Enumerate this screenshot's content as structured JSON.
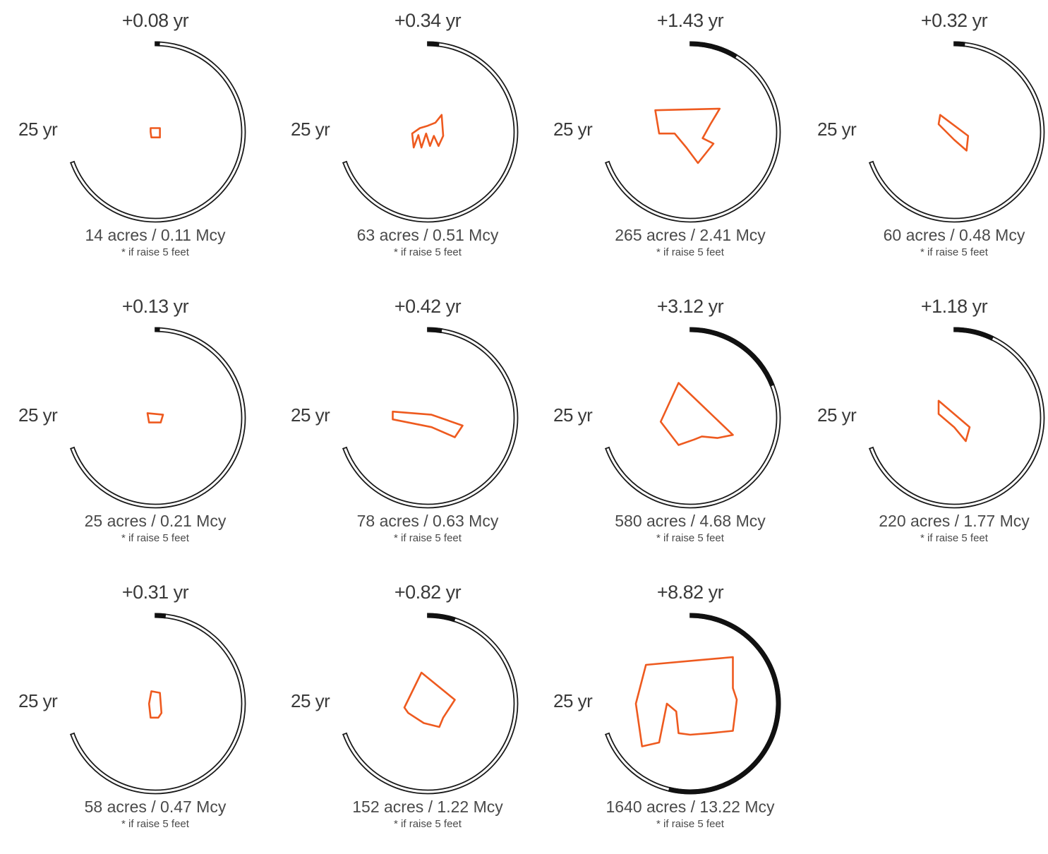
{
  "chart_data": {
    "type": "radial-gauge-small-multiples",
    "base_label": "25 yr",
    "note": "* if raise 5 feet",
    "gauge_max_years": 25,
    "colors": {
      "ring": "#1a1a1a",
      "gain": "#111111",
      "shape": "#ee5a1f",
      "text": "#3a3a3a"
    },
    "panels": [
      {
        "gain_label": "+0.08 yr",
        "gain_years": 0.08,
        "area_label": "14 acres / 0.11 Mcy",
        "acres": 14,
        "mcy": 0.11,
        "shape": [
          [
            -0.06,
            -0.05
          ],
          [
            0.06,
            -0.05
          ],
          [
            0.06,
            0.07
          ],
          [
            -0.05,
            0.07
          ],
          [
            -0.06,
            0.0
          ]
        ]
      },
      {
        "gain_label": "+0.34 yr",
        "gain_years": 0.34,
        "area_label": "63 acres / 0.51 Mcy",
        "acres": 63,
        "mcy": 0.51,
        "shape": [
          [
            -0.2,
            0.02
          ],
          [
            -0.1,
            -0.05
          ],
          [
            0.0,
            -0.08
          ],
          [
            0.1,
            -0.12
          ],
          [
            0.18,
            -0.22
          ],
          [
            0.2,
            0.05
          ],
          [
            0.14,
            0.18
          ],
          [
            0.08,
            0.05
          ],
          [
            0.03,
            0.18
          ],
          [
            -0.02,
            0.02
          ],
          [
            -0.08,
            0.2
          ],
          [
            -0.12,
            0.04
          ],
          [
            -0.18,
            0.2
          ]
        ]
      },
      {
        "gain_label": "+1.43 yr",
        "gain_years": 1.43,
        "area_label": "265 acres / 2.41 Mcy",
        "acres": 265,
        "mcy": 2.41,
        "shape": [
          [
            -0.45,
            -0.28
          ],
          [
            0.38,
            -0.3
          ],
          [
            0.26,
            -0.1
          ],
          [
            0.16,
            0.08
          ],
          [
            0.3,
            0.15
          ],
          [
            0.1,
            0.4
          ],
          [
            -0.05,
            0.2
          ],
          [
            -0.2,
            0.02
          ],
          [
            -0.4,
            0.02
          ]
        ]
      },
      {
        "gain_label": "+0.32 yr",
        "gain_years": 0.32,
        "area_label": "60 acres / 0.48 Mcy",
        "acres": 60,
        "mcy": 0.48,
        "shape": [
          [
            -0.18,
            -0.22
          ],
          [
            0.18,
            0.05
          ],
          [
            0.16,
            0.24
          ],
          [
            0.0,
            0.1
          ],
          [
            -0.2,
            -0.1
          ]
        ]
      },
      {
        "gain_label": "+0.13 yr",
        "gain_years": 0.13,
        "area_label": "25 acres / 0.21 Mcy",
        "acres": 25,
        "mcy": 0.21,
        "shape": [
          [
            -0.1,
            -0.06
          ],
          [
            0.1,
            -0.04
          ],
          [
            0.07,
            0.06
          ],
          [
            -0.08,
            0.06
          ]
        ]
      },
      {
        "gain_label": "+0.42 yr",
        "gain_years": 0.42,
        "area_label": "78 acres / 0.63 Mcy",
        "acres": 78,
        "mcy": 0.63,
        "shape": [
          [
            -0.45,
            -0.08
          ],
          [
            0.05,
            -0.04
          ],
          [
            0.45,
            0.1
          ],
          [
            0.35,
            0.25
          ],
          [
            0.05,
            0.12
          ],
          [
            -0.45,
            0.02
          ]
        ]
      },
      {
        "gain_label": "+3.12 yr",
        "gain_years": 3.12,
        "area_label": "580 acres / 4.68 Mcy",
        "acres": 580,
        "mcy": 4.68,
        "shape": [
          [
            -0.15,
            -0.45
          ],
          [
            0.55,
            0.22
          ],
          [
            0.35,
            0.26
          ],
          [
            0.15,
            0.24
          ],
          [
            0.05,
            0.28
          ],
          [
            -0.15,
            0.35
          ],
          [
            -0.38,
            0.05
          ]
        ]
      },
      {
        "gain_label": "+1.18 yr",
        "gain_years": 1.18,
        "area_label": "220 acres / 1.77 Mcy",
        "acres": 220,
        "mcy": 1.77,
        "shape": [
          [
            -0.2,
            -0.22
          ],
          [
            0.2,
            0.12
          ],
          [
            0.15,
            0.3
          ],
          [
            0.0,
            0.12
          ],
          [
            -0.2,
            -0.05
          ]
        ]
      },
      {
        "gain_label": "+0.31 yr",
        "gain_years": 0.31,
        "area_label": "58 acres / 0.47 Mcy",
        "acres": 58,
        "mcy": 0.47,
        "shape": [
          [
            -0.05,
            -0.16
          ],
          [
            0.06,
            -0.14
          ],
          [
            0.08,
            0.12
          ],
          [
            0.04,
            0.18
          ],
          [
            -0.06,
            0.18
          ],
          [
            -0.08,
            0.0
          ]
        ]
      },
      {
        "gain_label": "+0.82 yr",
        "gain_years": 0.82,
        "area_label": "152 acres / 1.22 Mcy",
        "acres": 152,
        "mcy": 1.22,
        "shape": [
          [
            -0.08,
            -0.4
          ],
          [
            0.35,
            -0.05
          ],
          [
            0.2,
            0.18
          ],
          [
            0.15,
            0.3
          ],
          [
            -0.05,
            0.25
          ],
          [
            -0.25,
            0.12
          ],
          [
            -0.3,
            0.05
          ]
        ]
      },
      {
        "gain_label": "+8.82 yr",
        "gain_years": 8.82,
        "area_label": "1640 acres / 13.22 Mcy",
        "acres": 1640,
        "mcy": 13.22,
        "shape": [
          [
            -0.57,
            -0.5
          ],
          [
            0.55,
            -0.6
          ],
          [
            0.55,
            -0.2
          ],
          [
            0.6,
            -0.05
          ],
          [
            0.55,
            0.35
          ],
          [
            0.25,
            0.38
          ],
          [
            0.0,
            0.4
          ],
          [
            -0.15,
            0.38
          ],
          [
            -0.18,
            0.1
          ],
          [
            -0.3,
            0.0
          ],
          [
            -0.4,
            0.5
          ],
          [
            -0.62,
            0.55
          ],
          [
            -0.7,
            0.0
          ]
        ]
      }
    ]
  }
}
